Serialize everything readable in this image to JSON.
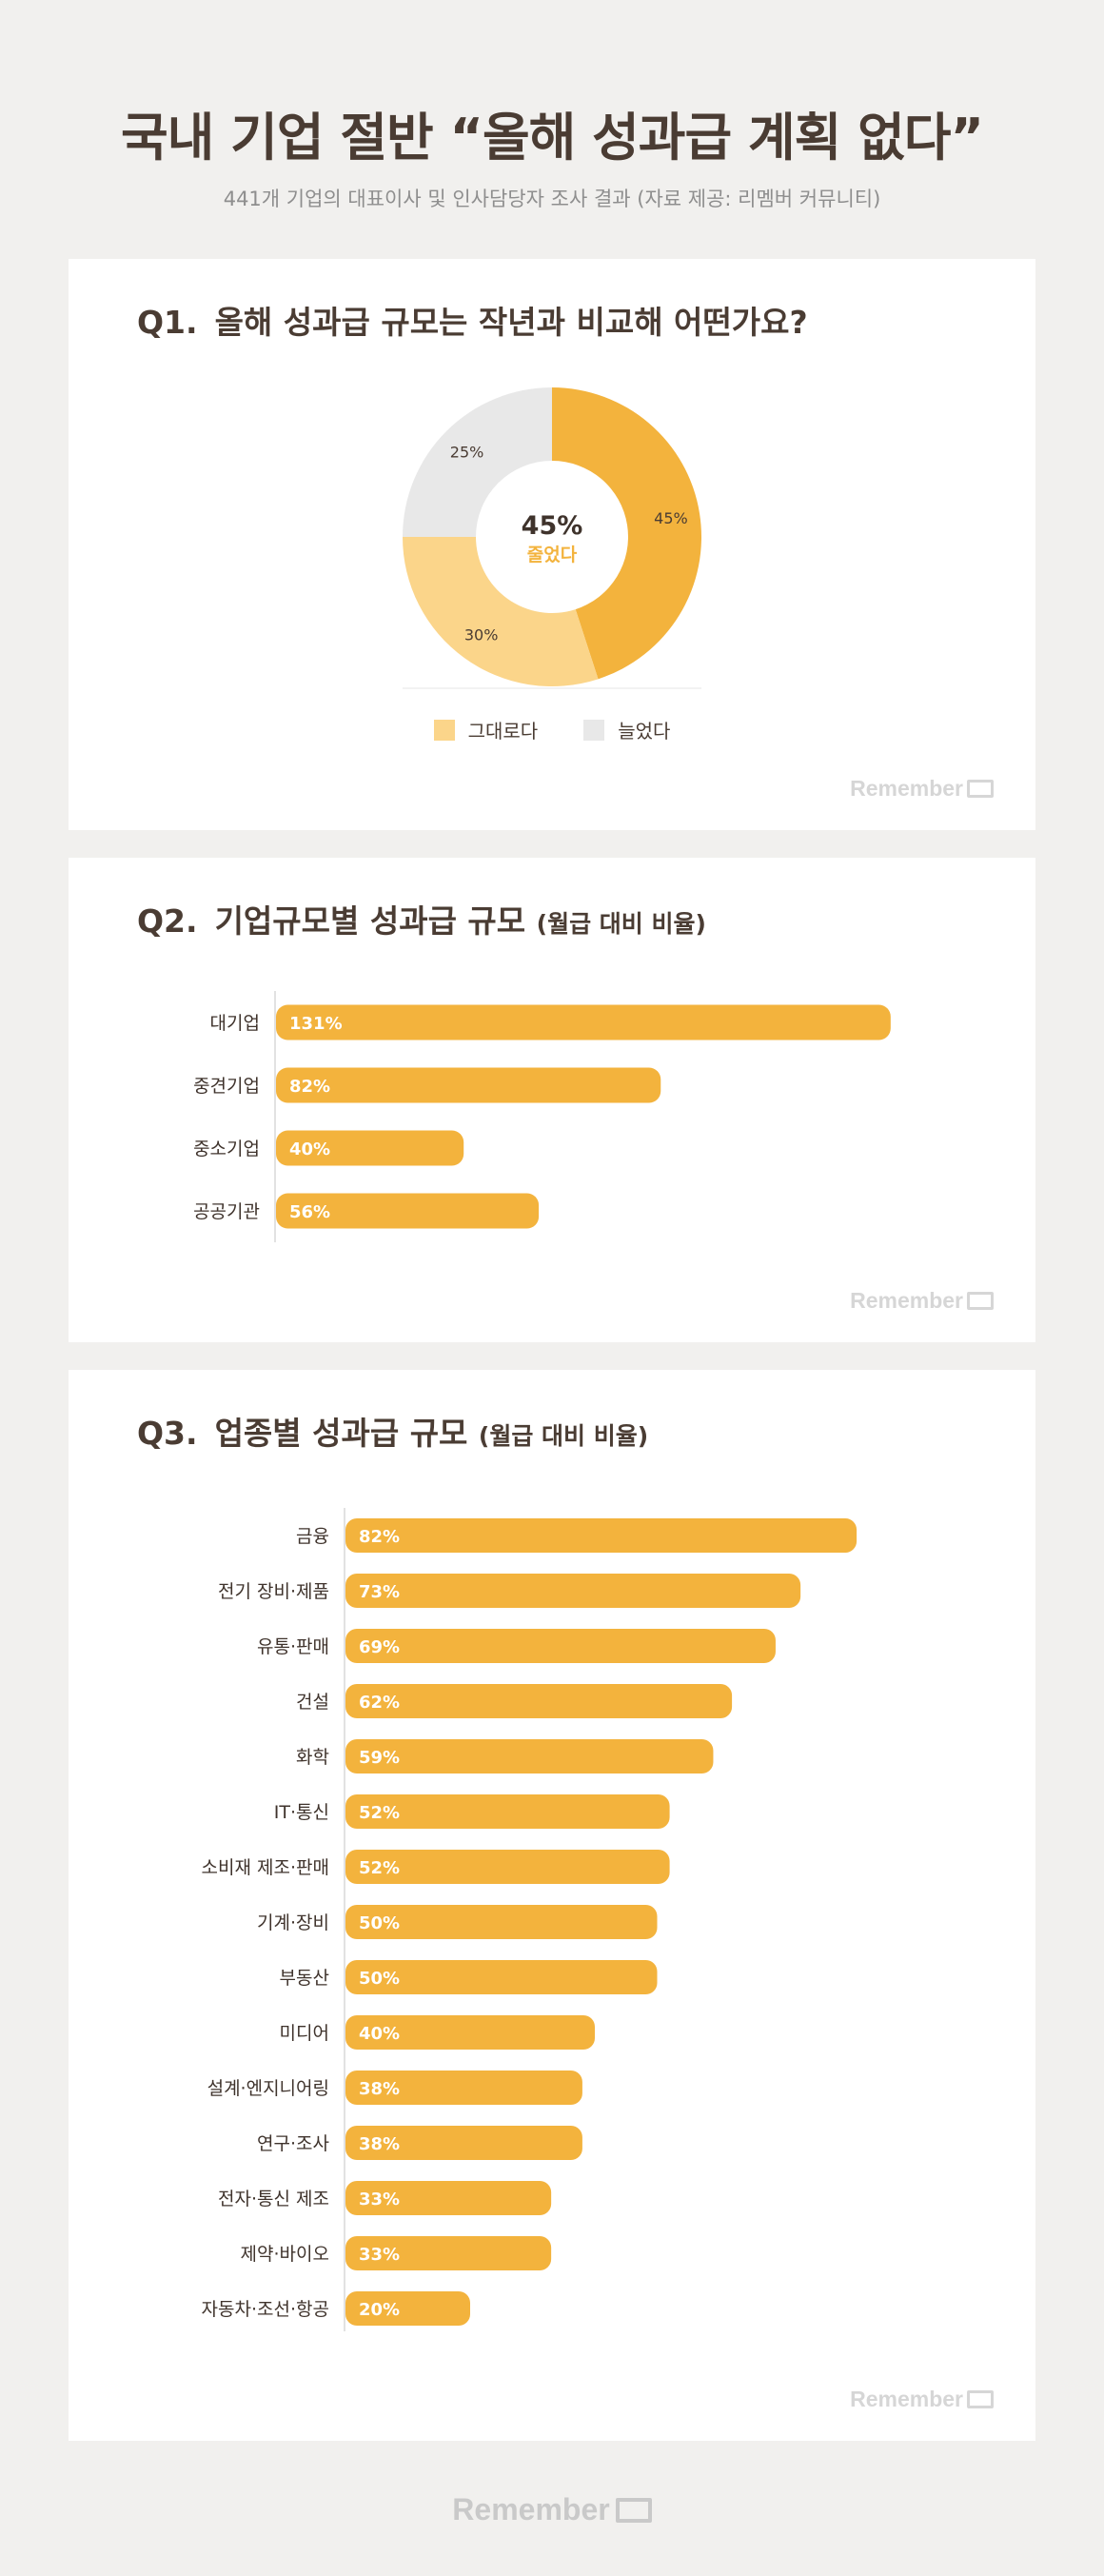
{
  "header": {
    "title": "국내 기업 절반 “올해 성과급 계획 없다”",
    "subtitle": "441개 기업의 대표이사 및 인사담당자 조사 결과 (자료 제공: 리멤버 커뮤니티)"
  },
  "brand": {
    "name": "Remember",
    "accent": "#f3b33d",
    "light": "#fbd58a",
    "grey": "#e8e8e8",
    "text": "#4a3c33"
  },
  "q1": {
    "num": "Q1.",
    "title": "올해 성과급 규모는 작년과 비교해 어떤가요?",
    "center_value": "45%",
    "center_label": "줄었다",
    "legend": [
      "그대로다",
      "늘었다"
    ]
  },
  "q2": {
    "num": "Q2.",
    "title": "기업규모별 성과급 규모",
    "note": "(월급 대비 비율)"
  },
  "q3": {
    "num": "Q3.",
    "title": "업종별 성과급 규모",
    "note": "(월급 대비 비율)"
  },
  "chart_data": [
    {
      "type": "pie",
      "title": "올해 성과급 규모는 작년과 비교해 어떤가요?",
      "categories": [
        "줄었다",
        "그대로다",
        "늘었다"
      ],
      "values": [
        45,
        30,
        25
      ],
      "labels": [
        "45%",
        "30%",
        "25%"
      ],
      "colors": [
        "#f3b33d",
        "#fbd58a",
        "#e8e8e8"
      ]
    },
    {
      "type": "bar",
      "orientation": "horizontal",
      "title": "기업규모별 성과급 규모 (월급 대비 비율)",
      "categories": [
        "대기업",
        "중견기업",
        "중소기업",
        "공공기관"
      ],
      "values": [
        131,
        82,
        40,
        56
      ],
      "labels": [
        "131%",
        "82%",
        "40%",
        "56%"
      ]
    },
    {
      "type": "bar",
      "orientation": "horizontal",
      "title": "업종별 성과급 규모 (월급 대비 비율)",
      "categories": [
        "금융",
        "전기 장비·제품",
        "유통·판매",
        "건설",
        "화학",
        "IT·통신",
        "소비재 제조·판매",
        "기계·장비",
        "부동산",
        "미디어",
        "설계·엔지니어링",
        "연구·조사",
        "전자·통신 제조",
        "제약·바이오",
        "자동차·조선·항공"
      ],
      "values": [
        82,
        73,
        69,
        62,
        59,
        52,
        52,
        50,
        50,
        40,
        38,
        38,
        33,
        33,
        20
      ],
      "labels": [
        "82%",
        "73%",
        "69%",
        "62%",
        "59%",
        "52%",
        "52%",
        "50%",
        "50%",
        "40%",
        "38%",
        "38%",
        "33%",
        "33%",
        "20%"
      ]
    }
  ]
}
